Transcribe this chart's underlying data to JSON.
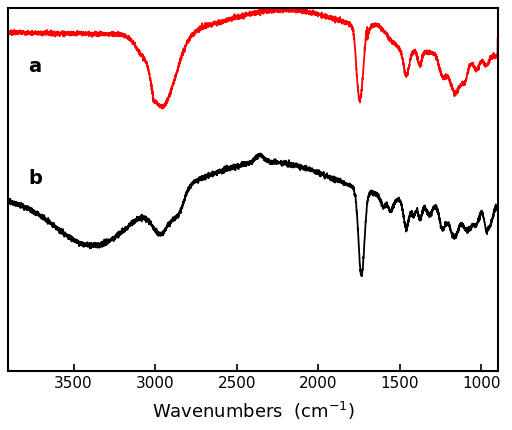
{
  "color_a": "#ff0000",
  "color_b": "#000000",
  "label_a": "a",
  "label_b": "b",
  "xticks": [
    3500,
    3000,
    2500,
    2000,
    1500,
    1000
  ],
  "background_color": "#ffffff",
  "linewidth_a": 1.3,
  "linewidth_b": 1.3,
  "xlabel": "Wavenumbers  (cm$^{-1}$)",
  "xlabel_fontsize": 13,
  "label_fontsize": 14,
  "tick_fontsize": 11,
  "xlim": [
    3900,
    900
  ],
  "ylim": [
    -1.05,
    1.15
  ],
  "noise_seed": 7
}
